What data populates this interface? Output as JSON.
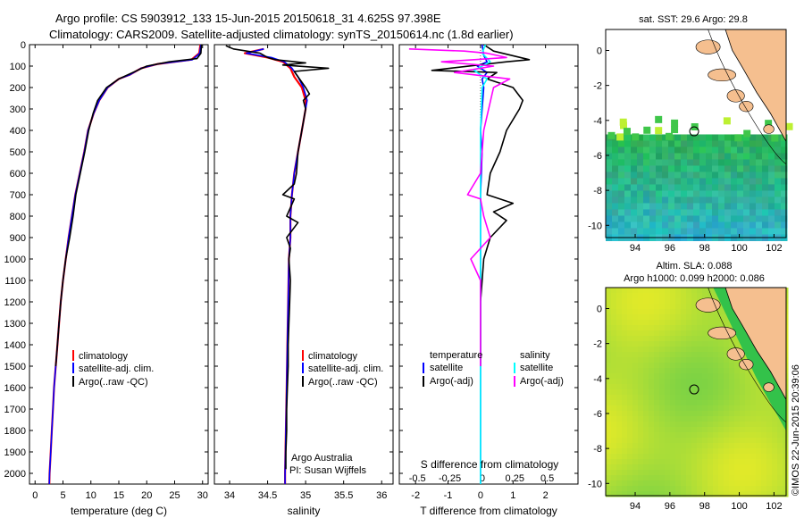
{
  "header": {
    "line1": "Argo profile: CS 5903912_133 15-Jun-2015 20150618_31 4.625S 97.398E",
    "line2": "Climatology: CARS2009. Satellite-adjusted climatology: synTS_20150614.nc (1.8d earlier)"
  },
  "credit": {
    "agency": "Argo Australia",
    "pi": "PI: Susan Wijffels",
    "timestamp": "©IMOS 22-Jun-2015 20:39:06"
  },
  "colors": {
    "climatology": "#ff0000",
    "satellite": "#0000ff",
    "argo": "#000000",
    "sal_satellite": "#00ffff",
    "sal_argo": "#ff00ff",
    "land": "#f5bf8f",
    "ocean_map": "#2cb84a",
    "sla_map": "#a8e63a"
  },
  "chart_data": [
    {
      "type": "line",
      "xlabel": "temperature (deg C)",
      "ylabel": "",
      "xlim": [
        -1,
        31
      ],
      "ylim": [
        2050,
        0
      ],
      "x_ticks": [
        0,
        5,
        10,
        15,
        20,
        25,
        30
      ],
      "y_ticks": [
        0,
        100,
        200,
        300,
        400,
        500,
        600,
        700,
        800,
        900,
        1000,
        1100,
        1200,
        1300,
        1400,
        1500,
        1600,
        1700,
        1800,
        1900,
        2000
      ],
      "legend": [
        "climatology",
        "satellite-adj. clim.",
        "Argo(..raw -QC)"
      ],
      "legend_position": "lower-middle",
      "series": [
        {
          "name": "climatology",
          "color": "#ff0000",
          "points": [
            [
              29.6,
              0
            ],
            [
              29.4,
              40
            ],
            [
              28,
              70
            ],
            [
              22,
              90
            ],
            [
              19,
              110
            ],
            [
              17,
              140
            ],
            [
              15,
              160
            ],
            [
              13,
              200
            ],
            [
              11.5,
              260
            ],
            [
              10.5,
              320
            ],
            [
              9.5,
              400
            ],
            [
              8.8,
              500
            ],
            [
              8,
              600
            ],
            [
              7.2,
              700
            ],
            [
              6.6,
              800
            ],
            [
              6,
              900
            ],
            [
              5.5,
              1000
            ],
            [
              5,
              1100
            ],
            [
              4.6,
              1200
            ],
            [
              4.3,
              1300
            ],
            [
              4,
              1400
            ],
            [
              3.7,
              1500
            ],
            [
              3.4,
              1600
            ],
            [
              3.2,
              1700
            ],
            [
              3,
              1800
            ],
            [
              2.8,
              1900
            ],
            [
              2.6,
              2000
            ],
            [
              2.55,
              2050
            ]
          ]
        },
        {
          "name": "satellite-adj. clim.",
          "color": "#0000ff",
          "points": [
            [
              29.7,
              0
            ],
            [
              29.5,
              40
            ],
            [
              28.2,
              70
            ],
            [
              22,
              90
            ],
            [
              19,
              110
            ],
            [
              17,
              140
            ],
            [
              15,
              160
            ],
            [
              13,
              200
            ],
            [
              11.5,
              260
            ],
            [
              10.5,
              320
            ],
            [
              9.5,
              400
            ],
            [
              8.8,
              500
            ],
            [
              8,
              600
            ],
            [
              7.2,
              700
            ],
            [
              6.6,
              800
            ],
            [
              6,
              900
            ],
            [
              5.5,
              1000
            ],
            [
              5,
              1100
            ],
            [
              4.6,
              1200
            ],
            [
              4.3,
              1300
            ],
            [
              4,
              1400
            ],
            [
              3.7,
              1500
            ],
            [
              3.4,
              1600
            ],
            [
              3.2,
              1700
            ],
            [
              3,
              1800
            ],
            [
              2.8,
              1900
            ],
            [
              2.6,
              2000
            ],
            [
              2.55,
              2050
            ]
          ]
        },
        {
          "name": "Argo(..raw -QC)",
          "color": "#000000",
          "points": [
            [
              29.8,
              0
            ],
            [
              29.7,
              40
            ],
            [
              29,
              65
            ],
            [
              24,
              80
            ],
            [
              20,
              100
            ],
            [
              17.5,
              130
            ],
            [
              15,
              160
            ],
            [
              12.8,
              200
            ],
            [
              11.2,
              260
            ],
            [
              10.4,
              320
            ],
            [
              9.6,
              400
            ],
            [
              8.9,
              500
            ],
            [
              8.1,
              600
            ],
            [
              7.3,
              700
            ],
            [
              6.8,
              800
            ],
            [
              6.2,
              900
            ],
            [
              5.5,
              1000
            ],
            [
              5,
              1100
            ],
            [
              4.6,
              1200
            ],
            [
              4.3,
              1300
            ],
            [
              4,
              1400
            ],
            [
              3.7,
              1500
            ]
          ]
        }
      ]
    },
    {
      "type": "line",
      "xlabel": "salinity",
      "ylabel": "",
      "xlim": [
        33.8,
        36.15
      ],
      "ylim": [
        2050,
        0
      ],
      "x_ticks": [
        34,
        34.5,
        35,
        35.5,
        36
      ],
      "legend": [
        "climatology",
        "satellite-adj. clim.",
        "Argo(..raw -QC)"
      ],
      "legend_position": "lower-right",
      "series": [
        {
          "name": "climatology",
          "color": "#ff0000",
          "points": [
            [
              34.45,
              20
            ],
            [
              34.2,
              40
            ],
            [
              34.5,
              60
            ],
            [
              34.7,
              80
            ],
            [
              34.8,
              110
            ],
            [
              34.85,
              150
            ],
            [
              34.95,
              200
            ],
            [
              35.0,
              260
            ],
            [
              35.0,
              300
            ],
            [
              34.95,
              400
            ],
            [
              34.9,
              500
            ],
            [
              34.85,
              600
            ],
            [
              34.82,
              700
            ],
            [
              34.8,
              800
            ],
            [
              34.8,
              900
            ],
            [
              34.78,
              1000
            ],
            [
              34.77,
              1200
            ],
            [
              34.76,
              1400
            ],
            [
              34.75,
              1600
            ],
            [
              34.74,
              1800
            ],
            [
              34.73,
              2000
            ],
            [
              34.73,
              2050
            ]
          ]
        },
        {
          "name": "satellite-adj. clim.",
          "color": "#0000ff",
          "points": [
            [
              34.45,
              20
            ],
            [
              34.22,
              40
            ],
            [
              34.55,
              60
            ],
            [
              34.72,
              80
            ],
            [
              34.82,
              110
            ],
            [
              34.9,
              150
            ],
            [
              34.97,
              200
            ],
            [
              35.02,
              260
            ],
            [
              35.0,
              300
            ],
            [
              34.95,
              400
            ],
            [
              34.9,
              500
            ],
            [
              34.85,
              600
            ],
            [
              34.82,
              700
            ],
            [
              34.8,
              800
            ],
            [
              34.8,
              900
            ],
            [
              34.78,
              1000
            ],
            [
              34.77,
              1200
            ],
            [
              34.76,
              1400
            ],
            [
              34.75,
              1600
            ],
            [
              34.74,
              1800
            ],
            [
              34.73,
              2000
            ],
            [
              34.73,
              2050
            ]
          ]
        },
        {
          "name": "Argo(..raw -QC)",
          "color": "#000000",
          "points": [
            [
              33.95,
              5
            ],
            [
              34.05,
              20
            ],
            [
              34.4,
              40
            ],
            [
              34.5,
              60
            ],
            [
              34.6,
              70
            ],
            [
              35.0,
              85
            ],
            [
              34.7,
              95
            ],
            [
              35.3,
              110
            ],
            [
              34.85,
              125
            ],
            [
              34.9,
              150
            ],
            [
              35.0,
              200
            ],
            [
              35.05,
              230
            ],
            [
              34.97,
              260
            ],
            [
              35.0,
              300
            ],
            [
              34.95,
              400
            ],
            [
              34.9,
              500
            ],
            [
              34.88,
              600
            ],
            [
              34.85,
              650
            ],
            [
              34.7,
              700
            ],
            [
              34.85,
              720
            ],
            [
              34.75,
              800
            ],
            [
              34.9,
              830
            ],
            [
              34.75,
              900
            ],
            [
              34.8,
              950
            ],
            [
              34.78,
              1000
            ],
            [
              34.8,
              1100
            ],
            [
              34.79,
              1200
            ],
            [
              34.78,
              1300
            ],
            [
              34.77,
              1400
            ],
            [
              34.77,
              1500
            ],
            [
              34.76,
              1600
            ],
            [
              34.75,
              1700
            ],
            [
              34.75,
              1800
            ],
            [
              34.74,
              1900
            ],
            [
              34.74,
              1980
            ]
          ]
        }
      ]
    },
    {
      "type": "line",
      "xlabel": "T difference from climatology",
      "x2label": "S difference from climatology",
      "xlim": [
        -2.5,
        3
      ],
      "ylim": [
        2050,
        0
      ],
      "x_ticks": [
        -2,
        -1,
        0,
        1,
        2
      ],
      "x2_ticks": [
        "-0.5",
        "-0.25",
        "0",
        "0.25",
        "0.5"
      ],
      "legend_temperature_title": "temperature",
      "legend_salinity_title": "salinity",
      "legend_temperature": [
        "satellite",
        "Argo(-adj)"
      ],
      "legend_salinity": [
        "satellite",
        "Argo(-adj)"
      ],
      "series": [
        {
          "name": "temperature satellite",
          "color": "#0000ff",
          "points": [
            [
              0.05,
              0
            ],
            [
              0.1,
              50
            ],
            [
              0.2,
              80
            ],
            [
              -0.1,
              100
            ],
            [
              0.2,
              130
            ],
            [
              0.05,
              160
            ],
            [
              0.1,
              200
            ],
            [
              0.05,
              300
            ],
            [
              0.0,
              400
            ],
            [
              0.05,
              500
            ],
            [
              0.0,
              700
            ],
            [
              0.0,
              1000
            ],
            [
              0.0,
              1500
            ],
            [
              0.0,
              2000
            ],
            [
              0.0,
              2050
            ]
          ]
        },
        {
          "name": "temperature Argo(-adj)",
          "color": "#000000",
          "points": [
            [
              0.1,
              0
            ],
            [
              0.4,
              30
            ],
            [
              1.5,
              70
            ],
            [
              0.8,
              80
            ],
            [
              -1.5,
              120
            ],
            [
              0.5,
              130
            ],
            [
              0.2,
              160
            ],
            [
              1.0,
              200
            ],
            [
              1.3,
              260
            ],
            [
              1.2,
              300
            ],
            [
              0.8,
              400
            ],
            [
              0.6,
              500
            ],
            [
              0.3,
              600
            ],
            [
              0.2,
              700
            ],
            [
              1.0,
              740
            ],
            [
              0.4,
              780
            ],
            [
              0.8,
              820
            ],
            [
              0.3,
              900
            ],
            [
              0.1,
              1000
            ],
            [
              0.05,
              1100
            ],
            [
              0.0,
              1200
            ],
            [
              0.0,
              1300
            ],
            [
              0.0,
              1400
            ],
            [
              0.0,
              1500
            ]
          ]
        },
        {
          "name": "salinity satellite",
          "color": "#00ffff",
          "points": [
            [
              0.15,
              0
            ],
            [
              0.05,
              40
            ],
            [
              0.3,
              80
            ],
            [
              -0.2,
              120
            ],
            [
              0.2,
              160
            ],
            [
              0.05,
              200
            ],
            [
              0.0,
              400
            ],
            [
              0.0,
              700
            ],
            [
              0.0,
              1000
            ],
            [
              0.0,
              1500
            ],
            [
              0.0,
              2000
            ],
            [
              0.0,
              2050
            ]
          ]
        },
        {
          "name": "salinity Argo(-adj)",
          "color": "#ff00ff",
          "points": [
            [
              -2.2,
              20
            ],
            [
              -0.5,
              30
            ],
            [
              0.2,
              40
            ],
            [
              0.8,
              60
            ],
            [
              -1.2,
              80
            ],
            [
              0.4,
              100
            ],
            [
              -0.8,
              130
            ],
            [
              0.9,
              160
            ],
            [
              0.4,
              200
            ],
            [
              0.1,
              400
            ],
            [
              0.0,
              600
            ],
            [
              -0.4,
              700
            ],
            [
              0.0,
              720
            ],
            [
              0.1,
              800
            ],
            [
              0.3,
              900
            ],
            [
              0.0,
              950
            ],
            [
              -0.3,
              1000
            ],
            [
              0.0,
              1100
            ],
            [
              0.0,
              1300
            ],
            [
              0.0,
              1400
            ],
            [
              0.0,
              1500
            ]
          ]
        }
      ]
    },
    {
      "type": "heatmap",
      "title": "sat. SST: 29.6  Argo: 29.8",
      "x_ticks": [
        94,
        96,
        98,
        100,
        102
      ],
      "y_ticks": [
        0,
        -2,
        -4,
        -6,
        -8,
        -10
      ],
      "xlim": [
        92.3,
        102.7
      ],
      "ylim": [
        -10.7,
        1.2
      ],
      "marker": {
        "lon": 97.398,
        "lat": -4.625
      }
    },
    {
      "type": "heatmap",
      "title_line1": "Altim. SLA: 0.088",
      "title_line2": "Argo h1000: 0.099 h2000: 0.086",
      "x_ticks": [
        94,
        96,
        98,
        100,
        102
      ],
      "y_ticks": [
        0,
        -2,
        -4,
        -6,
        -8,
        -10
      ],
      "xlim": [
        92.3,
        102.7
      ],
      "ylim": [
        -10.7,
        1.2
      ],
      "marker": {
        "lon": 97.398,
        "lat": -4.625
      }
    }
  ]
}
